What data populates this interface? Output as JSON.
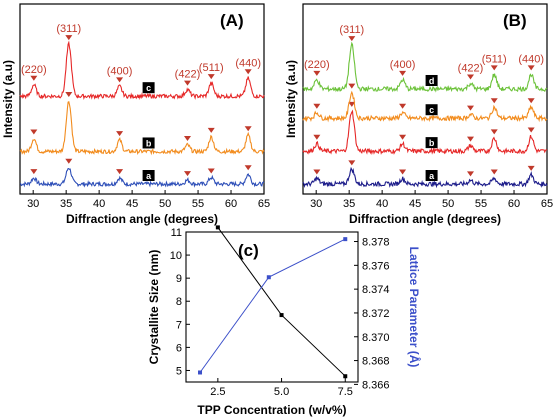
{
  "chart_data": [
    {
      "type": "line",
      "panel_label": "(A)",
      "xlabel": "Diffraction angle (degrees)",
      "ylabel": "Intensity (a.u)",
      "xlim": [
        28,
        65
      ],
      "xticks": [
        30,
        35,
        40,
        45,
        50,
        55,
        60,
        65
      ],
      "peak_positions": [
        30.1,
        35.4,
        43.1,
        53.4,
        57.0,
        62.6
      ],
      "peak_labels": [
        {
          "label": "(220)",
          "x": 30.1
        },
        {
          "label": "(311)",
          "x": 35.4
        },
        {
          "label": "(400)",
          "x": 43.1
        },
        {
          "label": "(422)",
          "x": 53.4
        },
        {
          "label": "(511)",
          "x": 57.0
        },
        {
          "label": "(440)",
          "x": 62.6
        }
      ],
      "series": [
        {
          "name": "a",
          "color": "#2e4fb8",
          "peak_heights": [
            0.18,
            0.5,
            0.18,
            0.12,
            0.2,
            0.3
          ],
          "baseline": 0.0
        },
        {
          "name": "b",
          "color": "#f28c1e",
          "peak_heights": [
            0.4,
            1.55,
            0.35,
            0.2,
            0.45,
            0.5
          ],
          "baseline": 1.0
        },
        {
          "name": "c",
          "color": "#e62828",
          "peak_heights": [
            0.35,
            1.6,
            0.3,
            0.2,
            0.4,
            0.55
          ],
          "baseline": 2.7
        }
      ]
    },
    {
      "type": "line",
      "panel_label": "(B)",
      "xlabel": "Diffraction angle (degrees)",
      "ylabel": "Intensity (a.u)",
      "xlim": [
        28,
        65
      ],
      "xticks": [
        30,
        35,
        40,
        45,
        50,
        55,
        60,
        65
      ],
      "peak_positions": [
        30.1,
        35.4,
        43.1,
        53.4,
        57.0,
        62.6
      ],
      "peak_labels": [
        {
          "label": "(220)",
          "x": 30.1
        },
        {
          "label": "(311)",
          "x": 35.4
        },
        {
          "label": "(400)",
          "x": 43.1
        },
        {
          "label": "(422)",
          "x": 53.4
        },
        {
          "label": "(511)",
          "x": 57.0
        },
        {
          "label": "(440)",
          "x": 62.6
        }
      ],
      "series": [
        {
          "name": "a",
          "color": "#1c1c8a",
          "peak_heights": [
            0.15,
            0.4,
            0.15,
            0.1,
            0.15,
            0.25
          ],
          "baseline": 0.0
        },
        {
          "name": "b",
          "color": "#e62828",
          "peak_heights": [
            0.2,
            1.1,
            0.2,
            0.15,
            0.35,
            0.4
          ],
          "baseline": 0.9
        },
        {
          "name": "c",
          "color": "#f28c1e",
          "peak_heights": [
            0.15,
            0.7,
            0.15,
            0.1,
            0.3,
            0.3
          ],
          "baseline": 1.8
        },
        {
          "name": "d",
          "color": "#6cc23a",
          "peak_heights": [
            0.25,
            1.2,
            0.25,
            0.15,
            0.4,
            0.4
          ],
          "baseline": 2.6
        }
      ]
    },
    {
      "type": "line",
      "panel_label": "(c)",
      "xlabel": "TPP Concentration (w/v%)",
      "ylabel": "Crystallite Size (nm)",
      "y2label": "Lattice Parameter (Å)",
      "xlim": [
        1.25,
        8.0
      ],
      "xticks": [
        "2.5",
        "5.0",
        "7.5"
      ],
      "ylim": [
        4.5,
        11
      ],
      "yticks": [
        "5",
        "6",
        "7",
        "8",
        "9",
        "10",
        "11"
      ],
      "y2lim": [
        8.3662,
        8.3788
      ],
      "y2ticks": [
        "8.366",
        "8.368",
        "8.370",
        "8.372",
        "8.374",
        "8.376",
        "8.378"
      ],
      "series": [
        {
          "axis": "left",
          "color": "#000000",
          "x": [
            2.5,
            5.0,
            7.5
          ],
          "y": [
            11.2,
            7.4,
            4.75
          ]
        },
        {
          "axis": "right",
          "color": "#3b4fc9",
          "x": [
            1.8,
            4.5,
            7.5
          ],
          "y": [
            8.367,
            8.375,
            8.3782
          ]
        }
      ]
    }
  ]
}
